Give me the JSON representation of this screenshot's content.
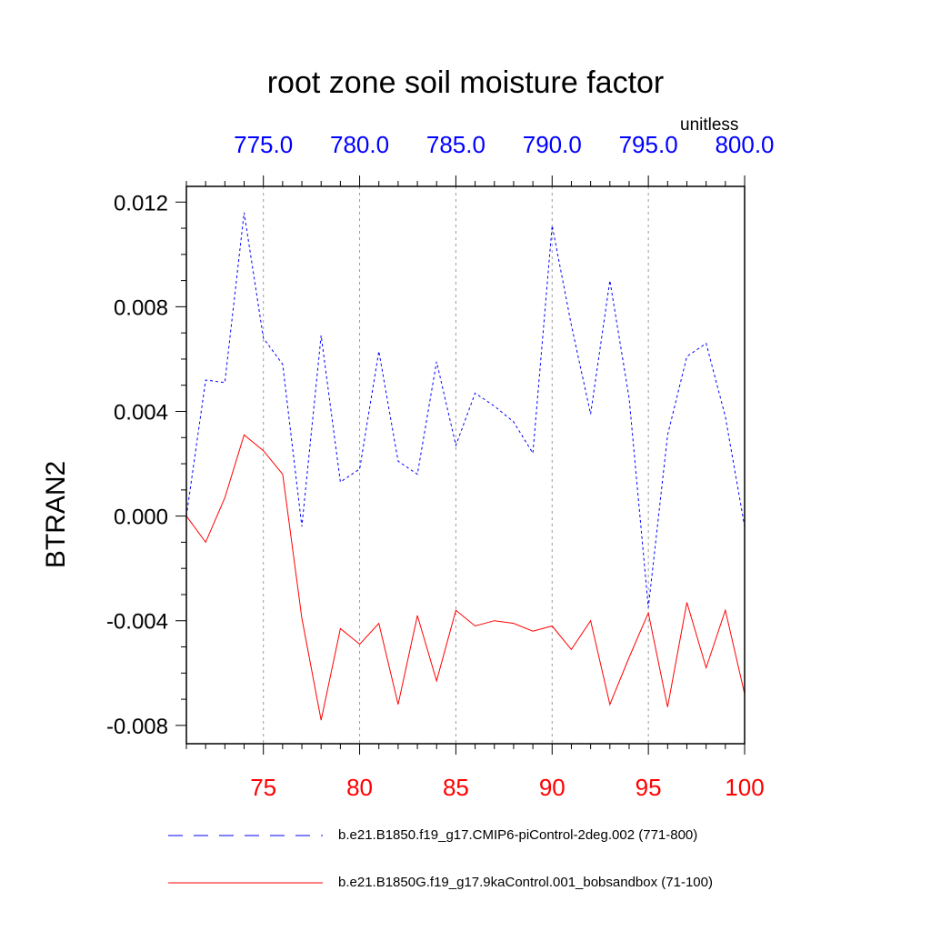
{
  "chart_data": {
    "type": "line",
    "title": "root zone soil moisture factor",
    "units": "unitless",
    "ylabel": "BTRAN2",
    "ylim": [
      -0.0087,
      0.0126
    ],
    "yticks": [
      0.012,
      0.008,
      0.004,
      0.0,
      -0.004,
      -0.008
    ],
    "ytick_labels": [
      "0.012",
      "0.008",
      "0.004",
      "0.000",
      "-0.004",
      "-0.008"
    ],
    "top_axis": {
      "range": [
        771,
        800
      ],
      "ticks": [
        775,
        780,
        785,
        790,
        795,
        800
      ],
      "tick_labels": [
        "775.0",
        "780.0",
        "785.0",
        "790.0",
        "795.0",
        "800.0"
      ],
      "color": "#0000ff"
    },
    "bottom_axis": {
      "range": [
        71,
        100
      ],
      "ticks": [
        75,
        80,
        85,
        90,
        95,
        100
      ],
      "tick_labels": [
        "75",
        "80",
        "85",
        "90",
        "95",
        "100"
      ],
      "color": "#ff0000"
    },
    "grid": "vertical dashed at major ticks",
    "series": [
      {
        "name": "b.e21.B1850.f19_g17.CMIP6-piControl-2deg.002 (771-800)",
        "axis": "top",
        "color": "#0000ff",
        "dash": "dashed",
        "x": [
          771,
          772,
          773,
          774,
          775,
          776,
          777,
          778,
          779,
          780,
          781,
          782,
          783,
          784,
          785,
          786,
          787,
          788,
          789,
          790,
          791,
          792,
          793,
          794,
          795,
          796,
          797,
          798,
          799,
          800
        ],
        "values": [
          0.0,
          0.0052,
          0.0051,
          0.0116,
          0.0068,
          0.0058,
          -0.0004,
          0.0069,
          0.0013,
          0.0018,
          0.0063,
          0.0021,
          0.0016,
          0.0059,
          0.0027,
          0.0047,
          0.0042,
          0.0036,
          0.0024,
          0.0111,
          0.0073,
          0.0039,
          0.009,
          0.0045,
          -0.0035,
          0.0031,
          0.0061,
          0.0066,
          0.0038,
          -0.0004
        ]
      },
      {
        "name": "b.e21.B1850G.f19_g17.9kaControl.001_bobsandbox (71-100)",
        "axis": "bottom",
        "color": "#ff0000",
        "dash": "solid",
        "x": [
          71,
          72,
          73,
          74,
          75,
          76,
          77,
          78,
          79,
          80,
          81,
          82,
          83,
          84,
          85,
          86,
          87,
          88,
          89,
          90,
          91,
          92,
          93,
          94,
          95,
          96,
          97,
          98,
          99,
          100
        ],
        "values": [
          0.0,
          -0.001,
          0.0007,
          0.0031,
          0.0025,
          0.0016,
          -0.0039,
          -0.0078,
          -0.0043,
          -0.0049,
          -0.0041,
          -0.0072,
          -0.0038,
          -0.0063,
          -0.0036,
          -0.0042,
          -0.004,
          -0.0041,
          -0.0044,
          -0.0042,
          -0.0051,
          -0.004,
          -0.0072,
          -0.0054,
          -0.0037,
          -0.0073,
          -0.0033,
          -0.0058,
          -0.0036,
          -0.0068
        ]
      }
    ]
  }
}
